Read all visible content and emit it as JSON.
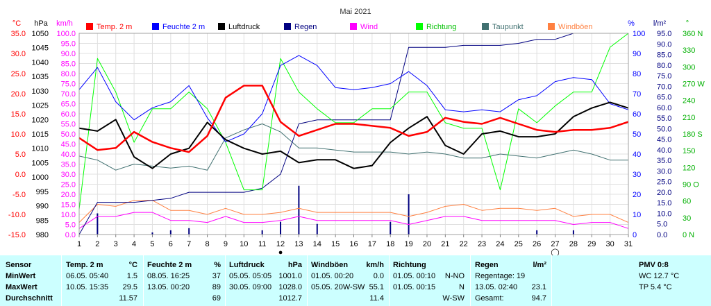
{
  "chart_data": {
    "type": "line",
    "title": "Mai 2021",
    "x": [
      1,
      2,
      3,
      4,
      5,
      6,
      7,
      8,
      9,
      10,
      11,
      12,
      13,
      14,
      15,
      16,
      17,
      18,
      19,
      20,
      21,
      22,
      23,
      24,
      25,
      26,
      27,
      28,
      29,
      30,
      31
    ],
    "axes": {
      "temp": {
        "unit": "°C",
        "min": -15,
        "max": 35,
        "ticks": [
          "35.0",
          "30.0",
          "25.0",
          "20.0",
          "15.0",
          "10.0",
          "5.0",
          "0.0",
          "-5.0",
          "-10.0",
          "-15.0"
        ]
      },
      "pressure": {
        "unit": "hPa",
        "min": 980,
        "max": 1050,
        "ticks": [
          "1050",
          "1045",
          "1040",
          "1035",
          "1030",
          "1025",
          "1020",
          "1015",
          "1010",
          "1005",
          "1000",
          "995",
          "990",
          "985",
          "980"
        ]
      },
      "wind": {
        "unit": "km/h",
        "min": 0,
        "max": 100,
        "ticks": [
          "100.0",
          "95.0",
          "90.0",
          "85.0",
          "80.0",
          "75.0",
          "70.0",
          "65.0",
          "60.0",
          "55.0",
          "50.0",
          "45.0",
          "40.0",
          "35.0",
          "30.0",
          "25.0",
          "20.0",
          "15.0",
          "10.0",
          "5.0",
          "0.0"
        ]
      },
      "humidity": {
        "unit": "%",
        "min": 0,
        "max": 100,
        "ticks": [
          "100",
          "90",
          "80",
          "70",
          "60",
          "50",
          "40",
          "30",
          "20",
          "10",
          "0"
        ]
      },
      "rain": {
        "unit": "l/m²",
        "min": 0,
        "max": 95,
        "ticks": [
          "95.0",
          "90.0",
          "85.0",
          "80.0",
          "75.0",
          "70.0",
          "65.0",
          "60.0",
          "55.0",
          "50.0",
          "45.0",
          "40.0",
          "35.0",
          "30.0",
          "25.0",
          "20.0",
          "15.0",
          "10.0",
          "5.0",
          "0.0"
        ]
      },
      "direction": {
        "unit": "°",
        "min": 0,
        "max": 360,
        "ticks": [
          "360 N",
          "330",
          "300",
          "270 W",
          "240",
          "210",
          "180 S",
          "150",
          "120",
          "90 O",
          "60",
          "30",
          "0 N"
        ]
      }
    },
    "legend": [
      {
        "name": "Temp. 2 m",
        "color": "#ff0000"
      },
      {
        "name": "Feuchte  2 m",
        "color": "#0000ff"
      },
      {
        "name": "Luftdruck",
        "color": "#000000"
      },
      {
        "name": "Regen",
        "color": "#000080"
      },
      {
        "name": "Wind",
        "color": "#ff00ff"
      },
      {
        "name": "Richtung",
        "color": "#00ff00"
      },
      {
        "name": "Taupunkt",
        "color": "#407070"
      },
      {
        "name": "Windböen",
        "color": "#ff8040"
      }
    ],
    "series": [
      {
        "name": "Temp. 2 m",
        "axis": "temp",
        "color": "#ff0000",
        "width": 2.5,
        "values": [
          9,
          6,
          6.5,
          10.5,
          8,
          6.5,
          5.5,
          9.5,
          19,
          22,
          22,
          13,
          9.5,
          11,
          12.5,
          12.5,
          12,
          11.5,
          9.5,
          10.5,
          14,
          13,
          12.5,
          14,
          12.5,
          11,
          10.5,
          11,
          11,
          11.5,
          13
        ]
      },
      {
        "name": "Feuchte  2 m",
        "axis": "humidity",
        "color": "#0000ff",
        "width": 1,
        "values": [
          72,
          83,
          66,
          57,
          63,
          66,
          74,
          58,
          46,
          50,
          60,
          84,
          89,
          84,
          73,
          72,
          73,
          75,
          81,
          74,
          62,
          61,
          62,
          61,
          67,
          69,
          76,
          78,
          77,
          65,
          62
        ]
      },
      {
        "name": "Luftdruck",
        "axis": "pressure",
        "color": "#000000",
        "width": 2,
        "values": [
          1017,
          1016,
          1020,
          1007,
          1003,
          1008,
          1010,
          1019,
          1013,
          1010,
          1008,
          1009,
          1005,
          1006,
          1006,
          1003,
          1004,
          1012,
          1017,
          1021,
          1011,
          1008,
          1015,
          1016,
          1014,
          1014,
          1015,
          1021,
          1024,
          1026,
          1024
        ]
      },
      {
        "name": "Regen",
        "axis": "humidity",
        "color": "#000080",
        "width": 1,
        "values": [
          0,
          16,
          16,
          16,
          17,
          18,
          21,
          21,
          21,
          21,
          23,
          30,
          55,
          57,
          57,
          57,
          57,
          57,
          93,
          93,
          93,
          94,
          94,
          94,
          95,
          97,
          97,
          100,
          100,
          100,
          100
        ]
      },
      {
        "name": "Wind",
        "axis": "wind",
        "color": "#ff00ff",
        "width": 1,
        "values": [
          3,
          9,
          9,
          11,
          11,
          7,
          7,
          6,
          9,
          6,
          6,
          7,
          9,
          7,
          7,
          7,
          7,
          7,
          5,
          7,
          9,
          9,
          7,
          7,
          7,
          7,
          7,
          5,
          6,
          6,
          3
        ]
      },
      {
        "name": "Richtung",
        "axis": "direction",
        "color": "#00ff00",
        "width": 1,
        "values": [
          45,
          315,
          255,
          165,
          225,
          225,
          255,
          225,
          165,
          80,
          80,
          315,
          255,
          225,
          200,
          200,
          225,
          225,
          255,
          255,
          200,
          190,
          190,
          80,
          225,
          200,
          230,
          255,
          255,
          335,
          360
        ]
      },
      {
        "name": "Taupunkt",
        "axis": "temp",
        "color": "#407070",
        "width": 1,
        "values": [
          4.5,
          3.5,
          1,
          2.5,
          2,
          1.5,
          2,
          1,
          9,
          11,
          12.5,
          10.5,
          6.5,
          6.5,
          6,
          5.5,
          5.5,
          5.5,
          5,
          5.5,
          5,
          4,
          4,
          5,
          4.5,
          4,
          5,
          6,
          5,
          3.5,
          3.5
        ]
      },
      {
        "name": "Windböen",
        "axis": "wind",
        "color": "#ff8040",
        "width": 1,
        "values": [
          6,
          15,
          14,
          17,
          17,
          12,
          12,
          10,
          13,
          10,
          10,
          11,
          13,
          11,
          11,
          11,
          11,
          11,
          9,
          11,
          14,
          15,
          12,
          13,
          13,
          12,
          13,
          9,
          10,
          10,
          6
        ]
      }
    ],
    "rain_bars": [
      {
        "x": 2,
        "value": 10
      },
      {
        "x": 5,
        "value": 1
      },
      {
        "x": 6,
        "value": 2
      },
      {
        "x": 7,
        "value": 3
      },
      {
        "x": 11,
        "value": 2
      },
      {
        "x": 12,
        "value": 6
      },
      {
        "x": 13,
        "value": 23
      },
      {
        "x": 14,
        "value": 5
      },
      {
        "x": 18,
        "value": 6
      },
      {
        "x": 19,
        "value": 19
      },
      {
        "x": 26,
        "value": 2
      },
      {
        "x": 28,
        "value": 2
      }
    ],
    "special_markers": [
      {
        "x": 12,
        "symbol": "●"
      },
      {
        "x": 27,
        "symbol": "◯"
      }
    ]
  },
  "stats": {
    "headers": {
      "sensor": "Sensor",
      "temp": "Temp. 2 m",
      "temp_unit": "°C",
      "hum": "Feuchte  2 m",
      "hum_unit": "%",
      "press": "Luftdruck",
      "press_unit": "hPa",
      "gust": "Windböen",
      "gust_unit": "km/h",
      "dir": "Richtung",
      "rain": "Regen",
      "rain_unit": "l/m²",
      "pmv": "PMV 0:8"
    },
    "rows": {
      "min": {
        "label": "MinWert",
        "temp_time": "06.05.  05:40",
        "temp_val": "1.5",
        "hum_time": "08.05.  16:25",
        "hum_val": "37",
        "press_time": "05.05.  05:05",
        "press_val": "1001.0",
        "gust_time": "01.05.  00:20",
        "gust_val": "0.0",
        "dir_time": "01.05.  00:10",
        "dir_val": "N-NO",
        "rain_text": "Regentage: 19",
        "pmv_text": "WC 12.7 °C"
      },
      "max": {
        "label": "MaxWert",
        "temp_time": "10.05.  15:35",
        "temp_val": "29.5",
        "hum_time": "13.05.  00:20",
        "hum_val": "89",
        "press_time": "30.05.  09:00",
        "press_val": "1028.0",
        "gust_time": "05.05.  20W-SW",
        "gust_val": "55.1",
        "dir_time": "01.05.  00:15",
        "dir_val": "N",
        "rain_time": "13.05.  02:40",
        "rain_val": "23.1",
        "pmv_text": "TP 5.4 °C"
      },
      "avg": {
        "label": "Durchschnitt",
        "temp_val": "11.57",
        "hum_val": "69",
        "press_val": "1012.7",
        "gust_val": "11.4",
        "dir_val": "W-SW",
        "rain_text": "Gesamt:",
        "rain_val": "94.7"
      }
    }
  }
}
